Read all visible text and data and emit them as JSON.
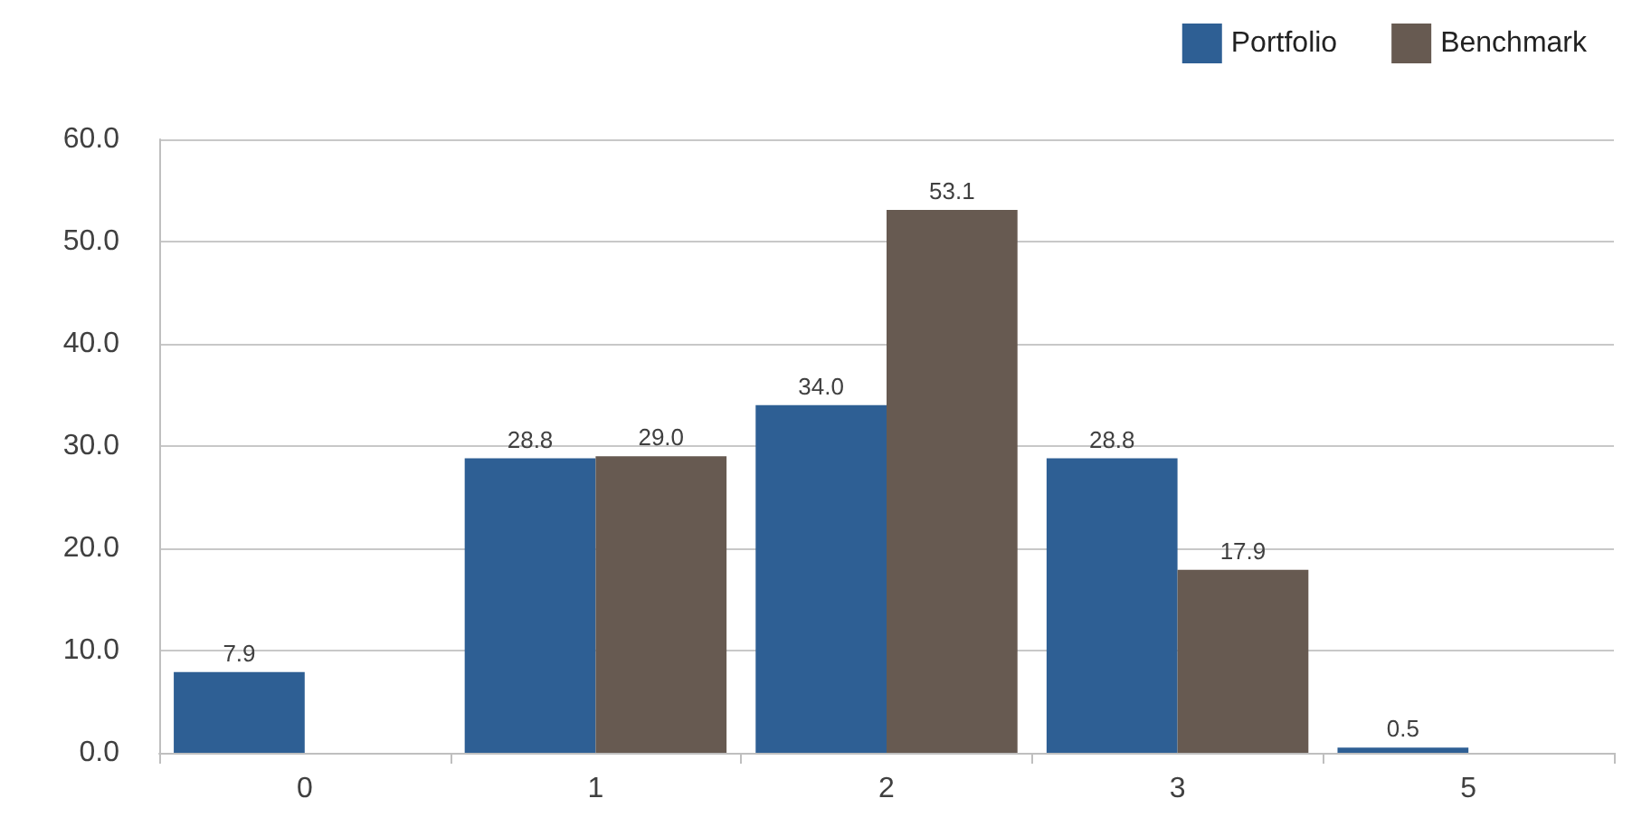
{
  "chart_data": {
    "type": "bar",
    "categories": [
      "0",
      "1",
      "2",
      "3",
      "5"
    ],
    "series": [
      {
        "name": "Portfolio",
        "color": "#2e5f94",
        "values": [
          7.9,
          28.8,
          34.0,
          28.8,
          0.5
        ],
        "value_labels": [
          "7.9",
          "28.8",
          "34.0",
          "28.8",
          "0.5"
        ]
      },
      {
        "name": "Benchmark",
        "color": "#675a51",
        "values": [
          null,
          29.0,
          53.1,
          17.9,
          null
        ],
        "value_labels": [
          null,
          "29.0",
          "53.1",
          "17.9",
          null
        ]
      }
    ],
    "ylim": [
      0,
      60
    ],
    "yticks": [
      {
        "value": 0,
        "label": "0.0"
      },
      {
        "value": 10,
        "label": "10.0"
      },
      {
        "value": 20,
        "label": "20.0"
      },
      {
        "value": 30,
        "label": "30.0"
      },
      {
        "value": 40,
        "label": "40.0"
      },
      {
        "value": 50,
        "label": "50.0"
      },
      {
        "value": 60,
        "label": "60.0"
      }
    ],
    "grid": "y",
    "legend": "top right"
  }
}
